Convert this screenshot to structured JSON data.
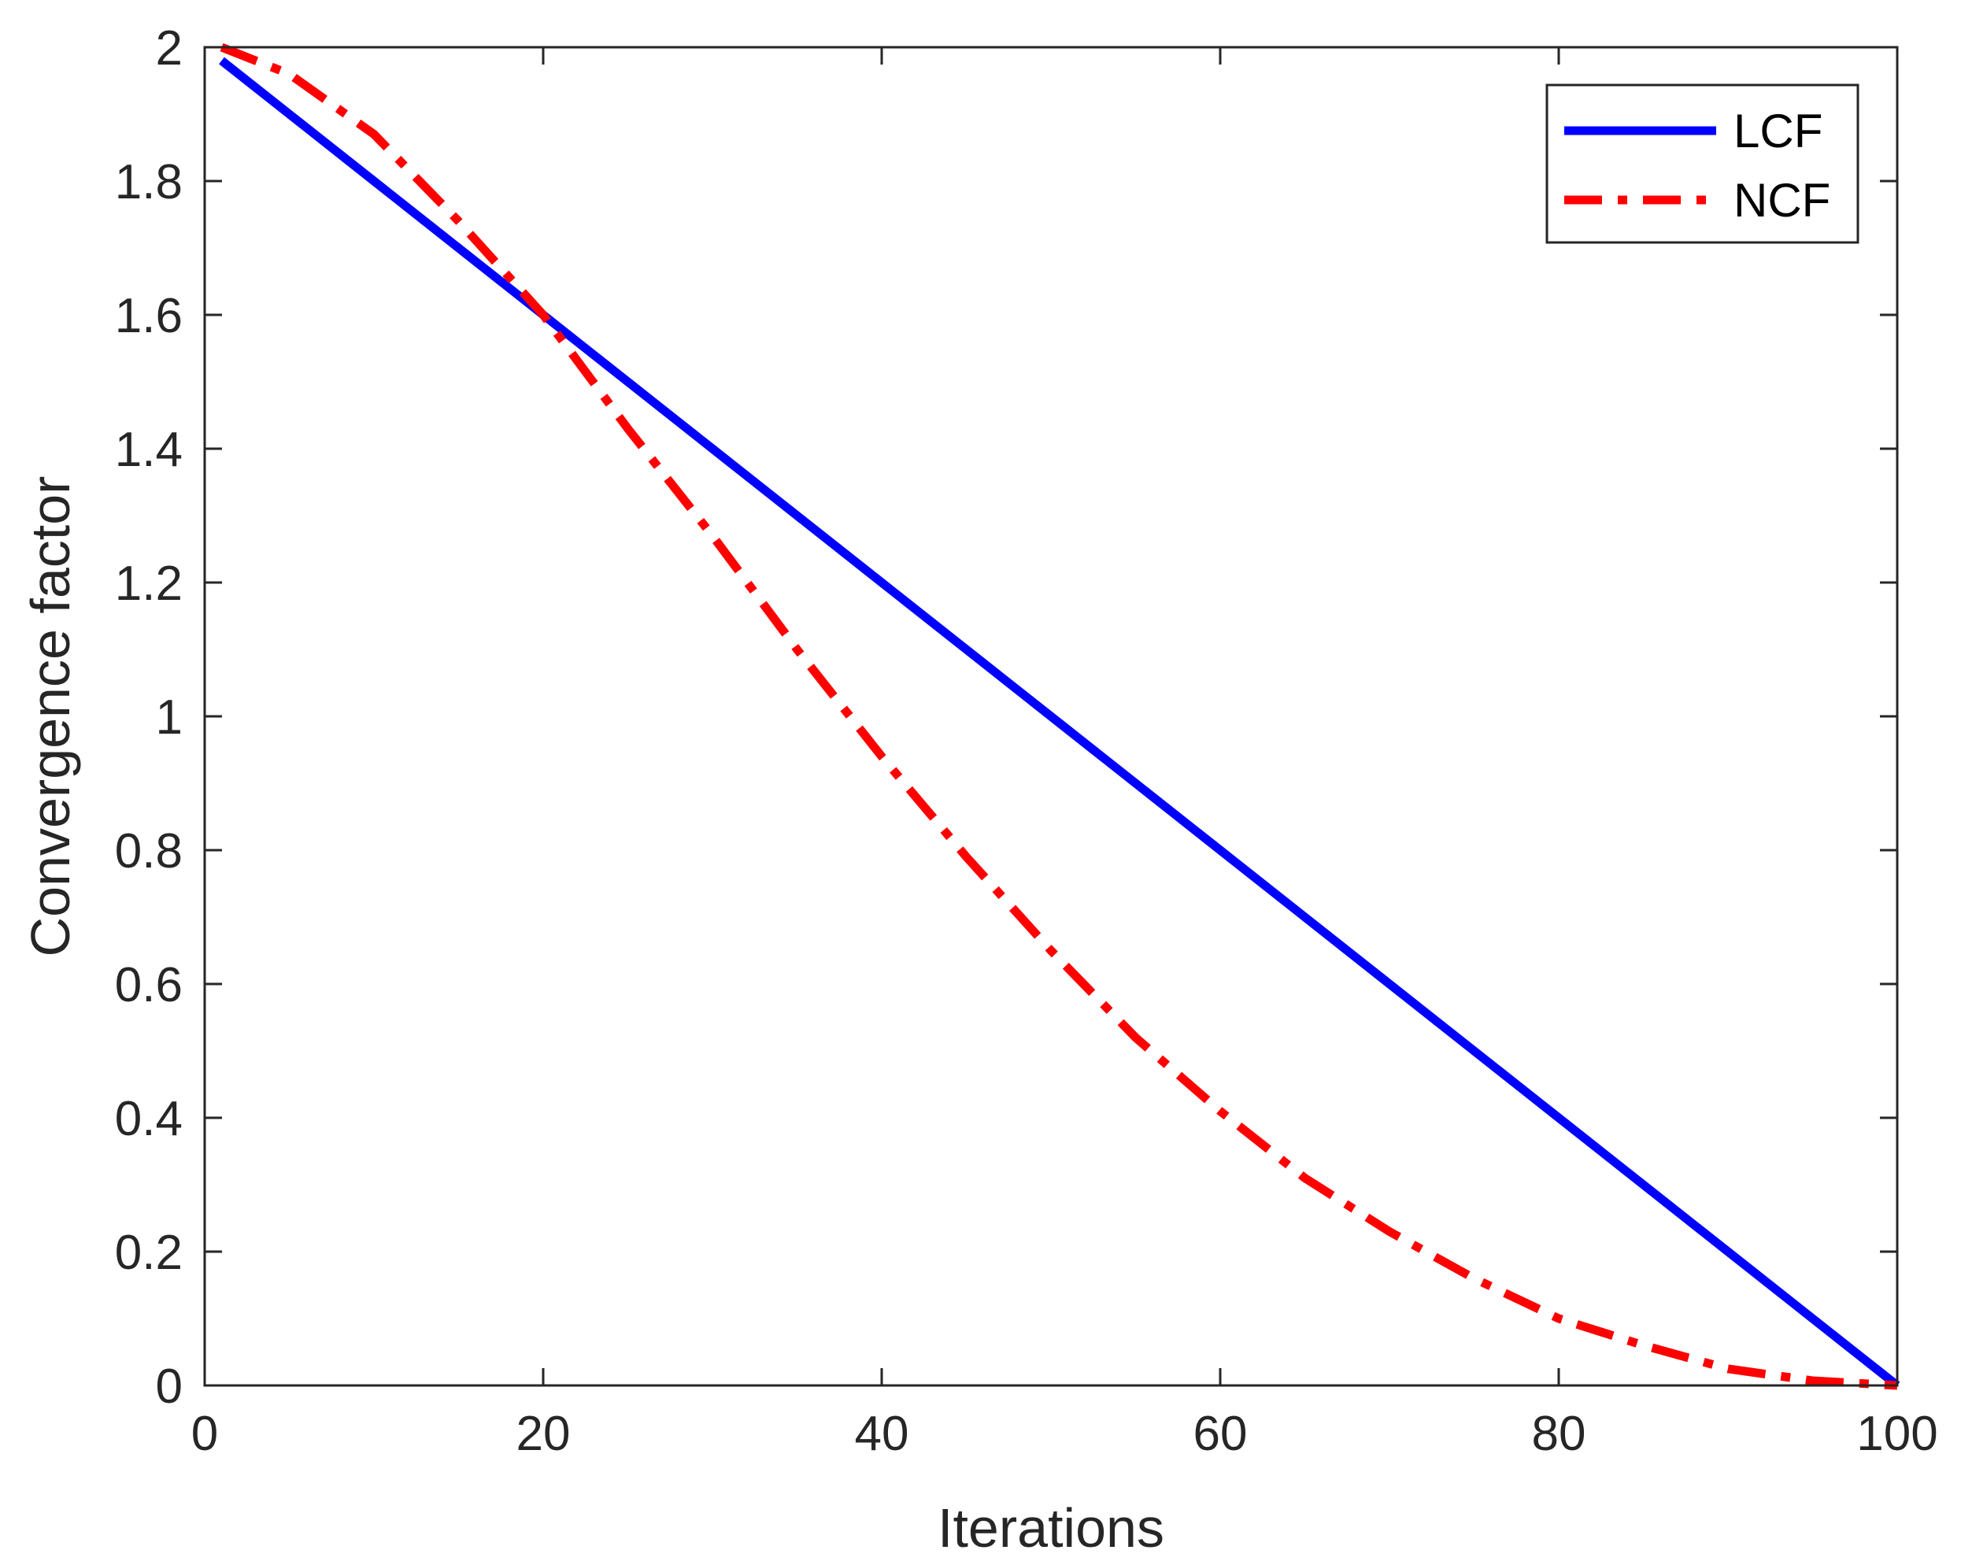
{
  "chart_data": {
    "type": "line",
    "xlabel": "Iterations",
    "ylabel": "Convergence factor",
    "xlim": [
      0,
      100
    ],
    "ylim": [
      0,
      2
    ],
    "xticks": [
      0,
      20,
      40,
      60,
      80,
      100
    ],
    "yticks": [
      0,
      0.2,
      0.4,
      0.6,
      0.8,
      1,
      1.2,
      1.4,
      1.6,
      1.8,
      2
    ],
    "xtick_labels": [
      "0",
      "20",
      "40",
      "60",
      "80",
      "100"
    ],
    "ytick_labels": [
      "0",
      "0.2",
      "0.4",
      "0.6",
      "0.8",
      "1",
      "1.2",
      "1.4",
      "1.6",
      "1.8",
      "2"
    ],
    "grid": false,
    "legend_position": "top-right",
    "series": [
      {
        "name": "LCF",
        "color": "#0000FF",
        "style": "solid",
        "x": [
          1,
          10,
          20,
          30,
          40,
          50,
          60,
          70,
          80,
          90,
          100
        ],
        "y": [
          1.98,
          1.8,
          1.6,
          1.4,
          1.2,
          1.0,
          0.8,
          0.6,
          0.4,
          0.2,
          0.0
        ]
      },
      {
        "name": "NCF",
        "color": "#FF0000",
        "style": "dash-dot",
        "x": [
          1,
          5,
          10,
          15,
          20,
          25,
          30,
          35,
          40,
          45,
          50,
          55,
          60,
          65,
          70,
          75,
          80,
          85,
          90,
          95,
          100
        ],
        "y": [
          2.0,
          1.96,
          1.87,
          1.74,
          1.6,
          1.43,
          1.27,
          1.1,
          0.94,
          0.79,
          0.65,
          0.52,
          0.41,
          0.31,
          0.23,
          0.16,
          0.1,
          0.06,
          0.025,
          0.007,
          0.0
        ]
      }
    ]
  }
}
